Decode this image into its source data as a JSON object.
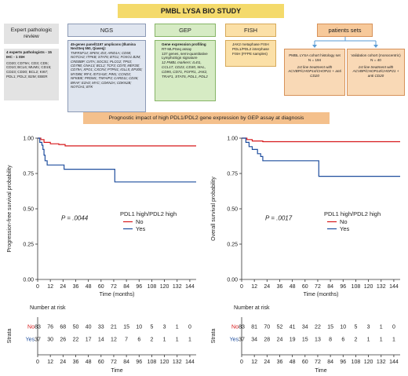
{
  "title": "PMBL LYSA BIO STUDY",
  "expert_review": {
    "header": "Expert pathologic review",
    "body_bold": "4 experts pathologists - 15 IHC - 1 ISH",
    "body": "CD20; CD79A; CD3; CD5; CD10; BCL6; MUM1; CD15; CD23; CD30; BCL2; KI67; PDL1; PDL2; B2M; EBER"
  },
  "ngs": {
    "header": "NGS",
    "body_bold": "45-genes panel/1197 amplicons (Illumina NextSeq 550, Qiaseq):",
    "body": "TNFRSF14; SPEN; ID3; ARID1A; CD58; NOTCH2; ITPKB; STAT6; BTG1; FOXO1 B2M; CREBBP; CIITA; SOCS1; PLCG2; TP53; CD79B; GNA13; BCL2; TCF3; CD70; MEF2B; CD79A; XPO1; CXCR4; PTPN1; IGLL5; EP300; MYD88; IRF4; IDT1H1E; PIM1; CCND3; NFKBIE; PRDM1; TNFAIP3; CARD11; CD36; BRAF; EZH2; MYC; CDKN2A; CDKN2B; NOTCH1; BTK"
  },
  "gep": {
    "header": "GEP",
    "items": [
      "Gene expression profiling",
      "RT-MLPSeq assay",
      "137 genes, semi-quantitative",
      "LymphoSign signature",
      "12 PMBL markers: IL4I1, CCL17, CD23, CD30, MAL, CD95, CD71, FGFR1, JAK2, TRAF1, STAT6, PDL1, PDL2"
    ]
  },
  "fish": {
    "header": "FISH",
    "items": [
      "JAK2 metaphase FISH",
      "PDL1/PDL2 interphase FISH (FFPE samples)"
    ]
  },
  "patients": {
    "header": "patients sets",
    "cohort1": {
      "title": "PMBL LYSA cohort histology set",
      "n": "N = 194",
      "desc": "1st line treatment with ACVBP/CHOP14/CHOP21 + anti CD20"
    },
    "cohort2": {
      "title": "Validation cohort (monocentric)",
      "n": "N = 40",
      "desc": "1st line treatment with ACVBP/CHOP14/CHOP21 + anti CD20"
    }
  },
  "subtitle": "Prognostic impact of high PDL1/PDL2 gene expression by GEP assay at diagnosis",
  "colors": {
    "no": "#d7191c",
    "yes": "#1f4e9e",
    "title": "#f4da6b",
    "subtitle": "#f4c08c",
    "gray": "#e3e3e3",
    "ngs": "#dfe5ef",
    "gep": "#d6ebc4",
    "fish": "#fbe0a7",
    "patients": "#f7c99a",
    "cohort": "#f9d9b6"
  },
  "chart_data": [
    {
      "type": "line",
      "ylabel": "Progression-free survival probability",
      "xlabel": "Time (months)",
      "xticks": [
        0,
        12,
        24,
        36,
        48,
        60,
        72,
        84,
        96,
        108,
        120,
        132,
        144
      ],
      "yticks": [
        "0.00",
        "0.25",
        "0.50",
        "0.75",
        "1.00"
      ],
      "xlim": [
        0,
        150
      ],
      "ylim": [
        0,
        1
      ],
      "pvalue": "P = .0044",
      "legend_title": "PDL1 high/PDL2 high",
      "series": [
        {
          "name": "No",
          "points": [
            [
              0,
              1.0
            ],
            [
              3,
              0.99
            ],
            [
              6,
              0.97
            ],
            [
              12,
              0.96
            ],
            [
              20,
              0.955
            ],
            [
              26,
              0.945
            ],
            [
              150,
              0.945
            ]
          ]
        },
        {
          "name": "Yes",
          "points": [
            [
              0,
              1.0
            ],
            [
              2,
              0.97
            ],
            [
              4,
              0.95
            ],
            [
              5,
              0.92
            ],
            [
              6,
              0.88
            ],
            [
              7,
              0.84
            ],
            [
              9,
              0.81
            ],
            [
              24,
              0.81
            ],
            [
              25,
              0.78
            ],
            [
              72,
              0.78
            ],
            [
              73,
              0.69
            ],
            [
              150,
              0.69
            ]
          ]
        }
      ],
      "risk_title": "Number at risk",
      "risk_axis_label": "Strata",
      "risk_xlabel": "Time",
      "risk_rows": [
        {
          "label": "No",
          "values": [
            83,
            76,
            68,
            50,
            40,
            33,
            21,
            15,
            10,
            5,
            3,
            1,
            0
          ]
        },
        {
          "label": "Yes",
          "values": [
            37,
            30,
            26,
            22,
            17,
            14,
            12,
            7,
            6,
            2,
            1,
            1,
            1
          ]
        }
      ]
    },
    {
      "type": "line",
      "ylabel": "Overall survival probability",
      "xlabel": "Time (months)",
      "xticks": [
        0,
        12,
        24,
        36,
        48,
        60,
        72,
        84,
        96,
        108,
        120,
        132,
        144
      ],
      "yticks": [
        "0.00",
        "0.25",
        "0.50",
        "0.75",
        "1.00"
      ],
      "xlim": [
        0,
        150
      ],
      "ylim": [
        0,
        1
      ],
      "pvalue": "P = .0017",
      "legend_title": "PDL1 high/PDL2 high",
      "series": [
        {
          "name": "No",
          "points": [
            [
              0,
              1.0
            ],
            [
              5,
              0.99
            ],
            [
              10,
              0.98
            ],
            [
              20,
              0.975
            ],
            [
              150,
              0.975
            ]
          ]
        },
        {
          "name": "Yes",
          "points": [
            [
              0,
              1.0
            ],
            [
              4,
              0.97
            ],
            [
              7,
              0.94
            ],
            [
              10,
              0.92
            ],
            [
              15,
              0.89
            ],
            [
              18,
              0.87
            ],
            [
              20,
              0.84
            ],
            [
              72,
              0.84
            ],
            [
              73,
              0.73
            ],
            [
              150,
              0.73
            ]
          ]
        }
      ],
      "risk_title": "Number at risk",
      "risk_axis_label": "Strata",
      "risk_xlabel": "Time",
      "risk_rows": [
        {
          "label": "No",
          "values": [
            83,
            81,
            70,
            52,
            41,
            34,
            22,
            15,
            10,
            5,
            3,
            1,
            0
          ]
        },
        {
          "label": "Yes",
          "values": [
            37,
            34,
            28,
            24,
            19,
            15,
            13,
            8,
            6,
            2,
            1,
            1,
            1
          ]
        }
      ]
    }
  ]
}
